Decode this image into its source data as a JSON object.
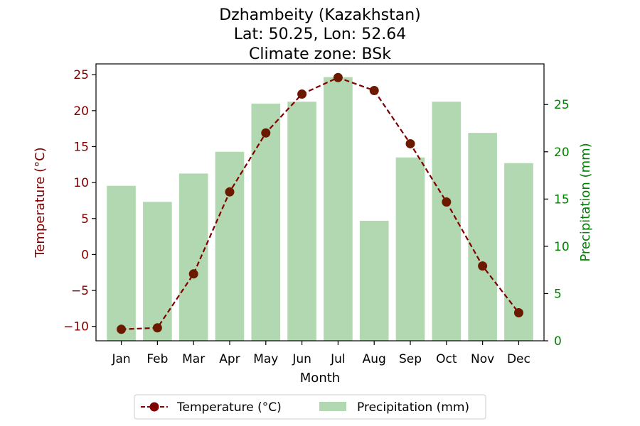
{
  "chart_data": {
    "type": "bar+line",
    "title_lines": [
      "Dzhambeity (Kazakhstan)",
      "Lat: 50.25, Lon: 52.64",
      "Climate zone: BSk"
    ],
    "xlabel": "Month",
    "categories": [
      "Jan",
      "Feb",
      "Mar",
      "Apr",
      "May",
      "Jun",
      "Jul",
      "Aug",
      "Sep",
      "Oct",
      "Nov",
      "Dec"
    ],
    "temperature": {
      "name": "Temperature (°C)",
      "axis_label": "Temperature (°C)",
      "values": [
        -10.4,
        -10.2,
        -2.7,
        8.7,
        16.9,
        22.3,
        24.6,
        22.8,
        15.4,
        7.3,
        -1.6,
        -8.1
      ],
      "ylim": [
        -12,
        26.5
      ],
      "ticks": [
        -10,
        -5,
        0,
        5,
        10,
        15,
        20,
        25
      ],
      "tick_labels": [
        "−10",
        "−5",
        "0",
        "5",
        "10",
        "15",
        "20",
        "25"
      ],
      "color": "#800000",
      "point_color": "#6b1a00"
    },
    "precipitation": {
      "name": "Precipitation (mm)",
      "axis_label": "Precipitation (mm)",
      "values": [
        16.4,
        14.7,
        17.7,
        20.0,
        25.1,
        25.3,
        27.9,
        12.7,
        19.4,
        25.3,
        22.0,
        18.8
      ],
      "ylim": [
        0,
        29.3
      ],
      "ticks": [
        0,
        5,
        10,
        15,
        20,
        25
      ],
      "tick_labels": [
        "0",
        "5",
        "10",
        "15",
        "20",
        "25"
      ],
      "color": "#b2d8b2",
      "axis_color": "#008000"
    },
    "legend": {
      "position": "bottom-center",
      "temperature_label": "Temperature (°C)",
      "precipitation_label": "Precipitation (mm)"
    },
    "grid": false
  }
}
